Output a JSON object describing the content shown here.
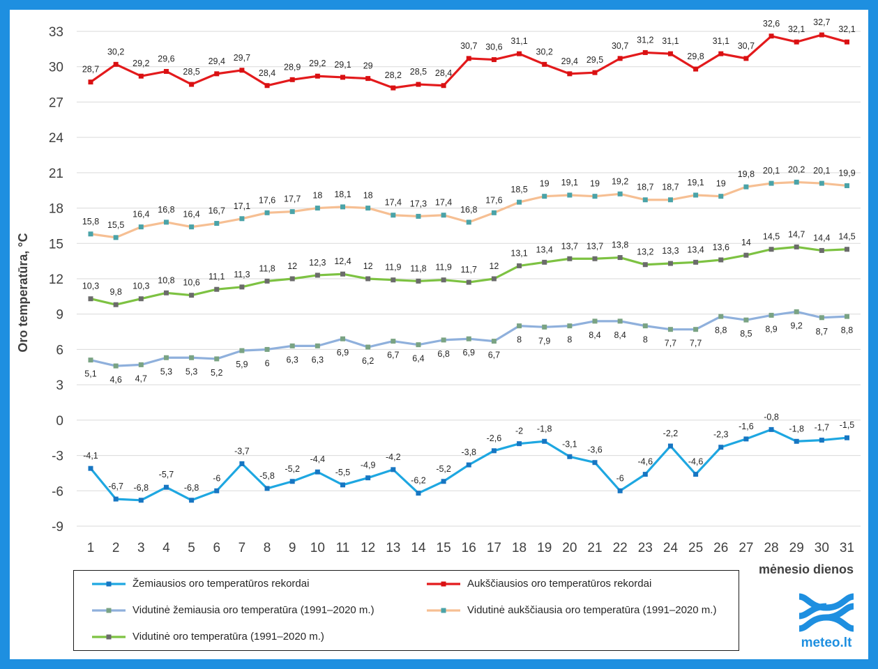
{
  "chart_data": {
    "type": "line",
    "ylabel": "Oro temperatūra, °C",
    "xlabel": "mėnesio dienos",
    "ylim": [
      -9,
      33
    ],
    "y_ticks": [
      33,
      30,
      27,
      24,
      21,
      18,
      15,
      12,
      9,
      6,
      3,
      0,
      -3,
      -6,
      -9
    ],
    "grid": true,
    "legend_position": "bottom",
    "x": [
      1,
      2,
      3,
      4,
      5,
      6,
      7,
      8,
      9,
      10,
      11,
      12,
      13,
      14,
      15,
      16,
      17,
      18,
      19,
      20,
      21,
      22,
      23,
      24,
      25,
      26,
      27,
      28,
      29,
      30,
      31
    ],
    "series": [
      {
        "name": "Žemiausios oro temperatūros rekordai",
        "line_color": "#1ea7e1",
        "marker_color": "#1776c2",
        "label_position": "above",
        "values": [
          -4.1,
          -6.7,
          -6.8,
          -5.7,
          -6.8,
          -6,
          -3.7,
          -5.8,
          -5.2,
          -4.4,
          -5.5,
          -4.9,
          -4.2,
          -6.2,
          -5.2,
          -3.8,
          -2.6,
          -2,
          -1.8,
          -3.1,
          -3.6,
          -6,
          -4.6,
          -2.2,
          -4.6,
          -2.3,
          -1.6,
          -0.8,
          -1.8,
          -1.7,
          -1.5
        ],
        "labels": [
          "-4,1",
          "-6,7",
          "-6,8",
          "-5,7",
          "-6,8",
          "-6",
          "-3,7",
          "-5,8",
          "-5,2",
          "-4,4",
          "-5,5",
          "-4,9",
          "-4,2",
          "-6,2",
          "-5,2",
          "-3,8",
          "-2,6",
          "-2",
          "-1,8",
          "-3,1",
          "-3,6",
          "-6",
          "-4,6",
          "-2,2",
          "-4,6",
          "-2,3",
          "-1,6",
          "-0,8",
          "-1,8",
          "-1,7",
          "-1,5"
        ]
      },
      {
        "name": "Aukščiausios oro temperatūros rekordai",
        "line_color": "#e31a1c",
        "marker_color": "#d91012",
        "label_position": "above",
        "values": [
          28.7,
          30.2,
          29.2,
          29.6,
          28.5,
          29.4,
          29.7,
          28.4,
          28.9,
          29.2,
          29.1,
          29,
          28.2,
          28.5,
          28.4,
          30.7,
          30.6,
          31.1,
          30.2,
          29.4,
          29.5,
          30.7,
          31.2,
          31.1,
          29.8,
          31.1,
          30.7,
          32.6,
          32.1,
          32.7,
          32.1
        ],
        "labels": [
          "28,7",
          "30,2",
          "29,2",
          "29,6",
          "28,5",
          "29,4",
          "29,7",
          "28,4",
          "28,9",
          "29,2",
          "29,1",
          "29",
          "28,2",
          "28,5",
          "28,4",
          "30,7",
          "30,6",
          "31,1",
          "30,2",
          "29,4",
          "29,5",
          "30,7",
          "31,2",
          "31,1",
          "29,8",
          "31,1",
          "30,7",
          "32,6",
          "32,1",
          "32,7",
          "32,1"
        ]
      },
      {
        "name": "Vidutinė žemiausia oro temperatūra (1991–2020 m.)",
        "line_color": "#8fb0dc",
        "marker_color": "#7aa383",
        "label_position": "below",
        "values": [
          5.1,
          4.6,
          4.7,
          5.3,
          5.3,
          5.2,
          5.9,
          6,
          6.3,
          6.3,
          6.9,
          6.2,
          6.7,
          6.4,
          6.8,
          6.9,
          6.7,
          8,
          7.9,
          8,
          8.4,
          8.4,
          8,
          7.7,
          7.7,
          8.8,
          8.5,
          8.9,
          9.2,
          8.7,
          8.8
        ],
        "labels": [
          "5,1",
          "4,6",
          "4,7",
          "5,3",
          "5,3",
          "5,2",
          "5,9",
          "6",
          "6,3",
          "6,3",
          "6,9",
          "6,2",
          "6,7",
          "6,4",
          "6,8",
          "6,9",
          "6,7",
          "8",
          "7,9",
          "8",
          "8,4",
          "8,4",
          "8",
          "7,7",
          "7,7",
          "8,8",
          "8,5",
          "8,9",
          "9,2",
          "8,7",
          "8,8"
        ]
      },
      {
        "name": "Vidutinė aukščiausia oro temperatūra (1991–2020 m.)",
        "line_color": "#f6bf93",
        "marker_color": "#4aa3a8",
        "label_position": "above",
        "values": [
          15.8,
          15.5,
          16.4,
          16.8,
          16.4,
          16.7,
          17.1,
          17.6,
          17.7,
          18,
          18.1,
          18,
          17.4,
          17.3,
          17.4,
          16.8,
          17.6,
          18.5,
          19,
          19.1,
          19,
          19.2,
          18.7,
          18.7,
          19.1,
          19,
          19.8,
          20.1,
          20.2,
          20.1,
          19.9
        ],
        "labels": [
          "15,8",
          "15,5",
          "16,4",
          "16,8",
          "16,4",
          "16,7",
          "17,1",
          "17,6",
          "17,7",
          "18",
          "18,1",
          "18",
          "17,4",
          "17,3",
          "17,4",
          "16,8",
          "17,6",
          "18,5",
          "19",
          "19,1",
          "19",
          "19,2",
          "18,7",
          "18,7",
          "19,1",
          "19",
          "19,8",
          "20,1",
          "20,2",
          "20,1",
          "19,9"
        ]
      },
      {
        "name": "Vidutinė oro temperatūra (1991–2020 m.)",
        "line_color": "#7dc242",
        "marker_color": "#6b6b6b",
        "label_position": "above",
        "values": [
          10.3,
          9.8,
          10.3,
          10.8,
          10.6,
          11.1,
          11.3,
          11.8,
          12,
          12.3,
          12.4,
          12,
          11.9,
          11.8,
          11.9,
          11.7,
          12,
          13.1,
          13.4,
          13.7,
          13.7,
          13.8,
          13.2,
          13.3,
          13.4,
          13.6,
          14,
          14.5,
          14.7,
          14.4,
          14.5
        ],
        "labels": [
          "10,3",
          "9,8",
          "10,3",
          "10,8",
          "10,6",
          "11,1",
          "11,3",
          "11,8",
          "12",
          "12,3",
          "12,4",
          "12",
          "11,9",
          "11,8",
          "11,9",
          "11,7",
          "12",
          "13,1",
          "13,4",
          "13,7",
          "13,7",
          "13,8",
          "13,2",
          "13,3",
          "13,4",
          "13,6",
          "14",
          "14,5",
          "14,7",
          "14,4",
          "14,5"
        ]
      }
    ]
  },
  "legend": {
    "items": [
      {
        "label": "Žemiausios oro temperatūros rekordai",
        "line_color": "#1ea7e1",
        "marker_color": "#1776c2"
      },
      {
        "label": "Aukščiausios oro temperatūros rekordai",
        "line_color": "#e31a1c",
        "marker_color": "#d91012"
      },
      {
        "label": "Vidutinė žemiausia oro temperatūra (1991–2020 m.)",
        "line_color": "#8fb0dc",
        "marker_color": "#7aa383"
      },
      {
        "label": "Vidutinė aukščiausia oro temperatūra (1991–2020 m.)",
        "line_color": "#f6bf93",
        "marker_color": "#4aa3a8"
      },
      {
        "label": "Vidutinė oro temperatūra (1991–2020 m.)",
        "line_color": "#7dc242",
        "marker_color": "#6b6b6b"
      }
    ]
  },
  "logo": {
    "text": "meteo.lt",
    "icon": "meteo-wave-logo-icon",
    "color": "#1e8fe0"
  },
  "frame": {
    "border_color": "#1e8fe0"
  }
}
